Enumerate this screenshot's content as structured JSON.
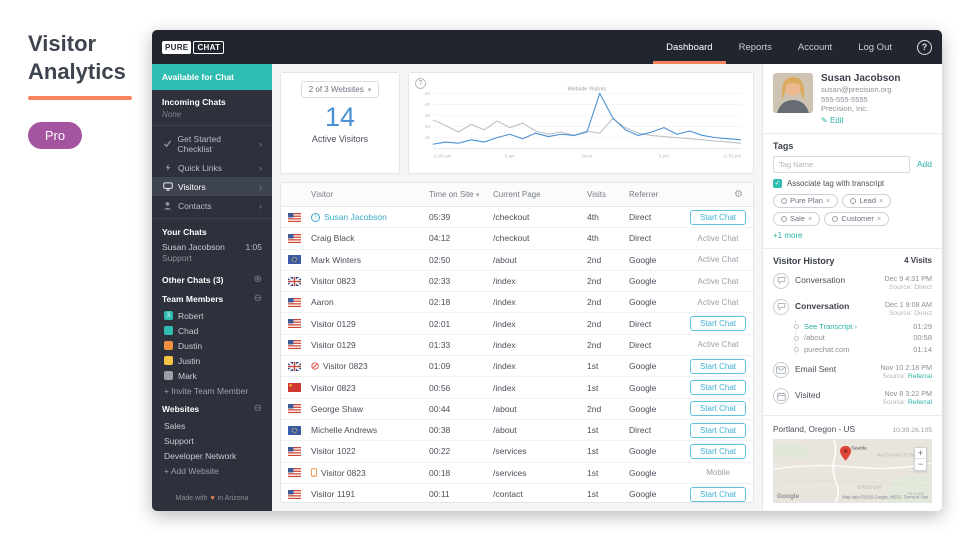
{
  "page": {
    "title_line1": "Visitor",
    "title_line2": "Analytics",
    "pro_badge": "Pro"
  },
  "navbar": {
    "logo_pure": "PURE",
    "logo_chat": "CHAT",
    "items": [
      {
        "label": "Dashboard",
        "active": true
      },
      {
        "label": "Reports"
      },
      {
        "label": "Account"
      },
      {
        "label": "Log Out"
      }
    ],
    "help": "?"
  },
  "sidebar": {
    "available": "Available for Chat",
    "incoming_chats": "Incoming Chats",
    "incoming_none": "None",
    "nav": [
      {
        "icon": "check",
        "label": "Get Started Checklist"
      },
      {
        "icon": "bolt",
        "label": "Quick Links"
      },
      {
        "icon": "monitor",
        "label": "Visitors",
        "active": true
      },
      {
        "icon": "person",
        "label": "Contacts"
      }
    ],
    "your_chats": "Your Chats",
    "chat_name": "Susan Jacobson",
    "chat_sub": "Support",
    "chat_time": "1:05",
    "other_chats": "Other Chats (3)",
    "team_members_title": "Team Members",
    "team": [
      {
        "name": "Robert",
        "color": "#2fbdb2",
        "badge": "3"
      },
      {
        "name": "Chad",
        "color": "#2fbdb2"
      },
      {
        "name": "Dustin",
        "color": "#f0913f"
      },
      {
        "name": "Justin",
        "color": "#f6c344"
      },
      {
        "name": "Mark",
        "color": "#9aa0a8"
      }
    ],
    "invite": "+ Invite Team Member",
    "websites_title": "Websites",
    "websites": [
      "Sales",
      "Support",
      "Developer Network"
    ],
    "add_website": "+ Add Website",
    "footer_pre": "Made with",
    "footer_post": "in Arizona"
  },
  "overview": {
    "websites_selector": "2 of 3 Websites",
    "active_count": "14",
    "active_label": "Active Visitors"
  },
  "chart_data": {
    "type": "line",
    "title": "Website Visitors",
    "x_ticks": [
      "12:00 am",
      "6 am",
      "Noon",
      "6 pm",
      "11:59 pm"
    ],
    "y_ticks": [
      10,
      20,
      30,
      40,
      50
    ],
    "ylim": [
      0,
      50
    ],
    "grid": true,
    "legend": false,
    "series": [
      {
        "name": "previous-period",
        "color": "#bcc0c6",
        "values": [
          26,
          21,
          15,
          22,
          17,
          25,
          19,
          23,
          16,
          13,
          15,
          12,
          16,
          14,
          27,
          19,
          14,
          12,
          11,
          10,
          9,
          8,
          7,
          6,
          5
        ]
      },
      {
        "name": "website-visitors",
        "color": "#4a90d3",
        "values": [
          4,
          6,
          5,
          8,
          6,
          10,
          13,
          9,
          14,
          11,
          13,
          12,
          15,
          50,
          28,
          17,
          12,
          15,
          19,
          13,
          16,
          12,
          10,
          9,
          8
        ]
      }
    ]
  },
  "table": {
    "headers": [
      "Visitor",
      "Time on Site",
      "Current Page",
      "Visits",
      "Referrer"
    ],
    "start_chat_label": "Start Chat",
    "rows": [
      {
        "flag": "us",
        "icon": "info",
        "link": true,
        "name": "Susan Jacobson",
        "time": "05:39",
        "page": "/checkout",
        "visits": "4th",
        "referrer": "Direct",
        "action": "button"
      },
      {
        "flag": "us",
        "name": "Craig Black",
        "time": "04:12",
        "page": "/checkout",
        "visits": "4th",
        "referrer": "Direct",
        "action": "Active Chat"
      },
      {
        "flag": "eu",
        "name": "Mark Winters",
        "time": "02:50",
        "page": "/about",
        "visits": "2nd",
        "referrer": "Google",
        "action": "Active Chat"
      },
      {
        "flag": "uk",
        "name": "Visitor 0823",
        "time": "02:33",
        "page": "/index",
        "visits": "2nd",
        "referrer": "Google",
        "action": "Active Chat"
      },
      {
        "flag": "us",
        "name": "Aaron",
        "time": "02:18",
        "page": "/index",
        "visits": "2nd",
        "referrer": "Google",
        "action": "Active Chat"
      },
      {
        "flag": "us",
        "name": "Visitor 0129",
        "time": "02:01",
        "page": "/index",
        "visits": "2nd",
        "referrer": "Direct",
        "action": "button"
      },
      {
        "flag": "us",
        "name": "Visitor 0129",
        "time": "01:33",
        "page": "/index",
        "visits": "2nd",
        "referrer": "Direct",
        "action": "Active Chat"
      },
      {
        "flag": "uk",
        "icon": "banned",
        "name": "Visitor 0823",
        "time": "01:09",
        "page": "/index",
        "visits": "1st",
        "referrer": "Google",
        "action": "button"
      },
      {
        "flag": "cn",
        "name": "Visitor 0823",
        "time": "00:56",
        "page": "/index",
        "visits": "1st",
        "referrer": "Google",
        "action": "button"
      },
      {
        "flag": "us",
        "name": "George Shaw",
        "time": "00:44",
        "page": "/about",
        "visits": "2nd",
        "referrer": "Google",
        "action": "button"
      },
      {
        "flag": "eu",
        "name": "Michelle Andrews",
        "time": "00:38",
        "page": "/about",
        "visits": "1st",
        "referrer": "Direct",
        "action": "button"
      },
      {
        "flag": "us",
        "name": "Visitor 1022",
        "time": "00:22",
        "page": "/services",
        "visits": "1st",
        "referrer": "Google",
        "action": "button"
      },
      {
        "flag": "us",
        "icon": "mobile",
        "name": "Visitor 0823",
        "time": "00:18",
        "page": "/services",
        "visits": "1st",
        "referrer": "Google",
        "action": "Mobile"
      },
      {
        "flag": "us",
        "name": "Visitor 1191",
        "time": "00:11",
        "page": "/contact",
        "visits": "1st",
        "referrer": "Google",
        "action": "button"
      }
    ]
  },
  "profile": {
    "name": "Susan Jacobson",
    "email": "susan@precision.org",
    "phone": "555-555-5555",
    "company": "Precision, Inc.",
    "edit_label": "Edit"
  },
  "tags": {
    "title": "Tags",
    "placeholder": "Tag Name",
    "add_label": "Add",
    "checkbox_label": "Associate tag with transcript",
    "checkbox_checked": true,
    "pills": [
      "Pure Plan",
      "Lead",
      "Sale",
      "Customer"
    ],
    "more_label": "+1 more"
  },
  "history": {
    "title": "Visitor History",
    "visits_label": "4 Visits",
    "source_prefix": "Source:",
    "items": [
      {
        "icon": "chat",
        "label": "Conversation",
        "date": "Dec 9 4:31 PM",
        "source": "Direct"
      },
      {
        "icon": "chat",
        "label": "Conversation",
        "bold": true,
        "date": "Dec 1 9:08 AM",
        "source": "Direct",
        "details": [
          {
            "label": "See Transcript",
            "link": true,
            "time": "01:29"
          },
          {
            "label": "/about",
            "time": "00:58"
          },
          {
            "label": "purechat.com",
            "time": "01:14"
          }
        ]
      },
      {
        "icon": "mail",
        "label": "Email Sent",
        "date": "Nov 10 2:18 PM",
        "source": "Referral"
      },
      {
        "icon": "calendar",
        "label": "Visited",
        "date": "Nov 8 3:22 PM",
        "source": "Referral"
      }
    ]
  },
  "location": {
    "place": "Portland, Oregon - US",
    "ip": "10.39.26.105"
  },
  "map": {
    "labels": [
      "Seattle",
      "WASHINGTON",
      "OREGON",
      "IDAHO"
    ],
    "google": "Google",
    "attribution": "Map data ©2016 Google, INEGI",
    "terms": "Terms of Use",
    "zoom_in": "+",
    "zoom_out": "−"
  }
}
